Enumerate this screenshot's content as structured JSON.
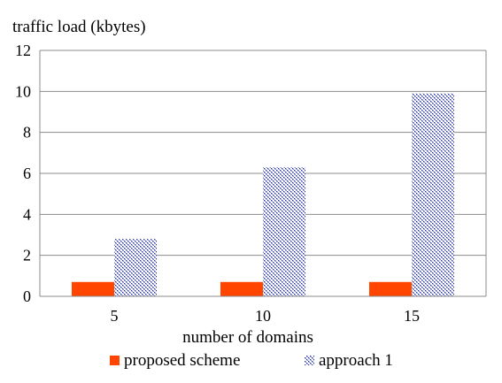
{
  "chart_data": {
    "type": "bar",
    "title": "",
    "ylabel": "traffic  load (kbytes)",
    "xlabel": "number of domains",
    "categories": [
      "5",
      "10",
      "15"
    ],
    "ylim": [
      0,
      12
    ],
    "yticks": [
      "0",
      "2",
      "4",
      "6",
      "8",
      "10",
      "12"
    ],
    "grid": "horizontal",
    "legend_position": "bottom",
    "series": [
      {
        "name": "proposed scheme",
        "values": [
          0.7,
          0.7,
          0.7
        ],
        "color": "#ff4500",
        "fill": "solid"
      },
      {
        "name": "approach 1",
        "values": [
          2.8,
          6.3,
          9.9
        ],
        "color": "#1a2a99",
        "fill": "cross-hatch"
      }
    ]
  }
}
